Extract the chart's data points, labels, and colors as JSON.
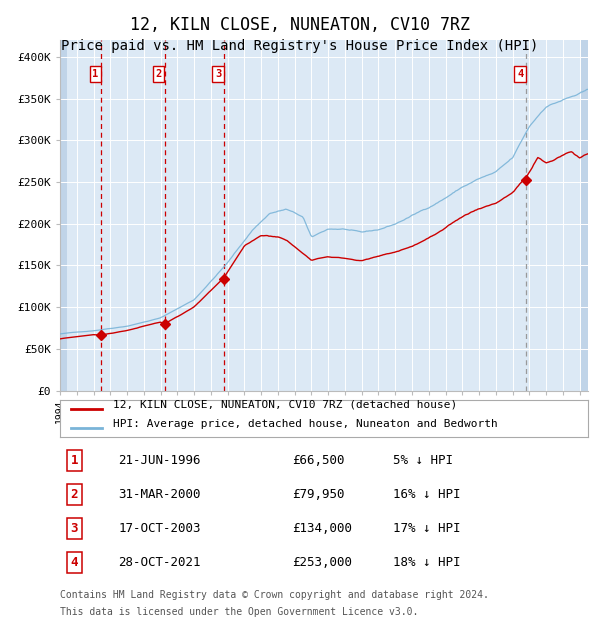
{
  "title": "12, KILN CLOSE, NUNEATON, CV10 7RZ",
  "subtitle": "Price paid vs. HM Land Registry's House Price Index (HPI)",
  "title_fontsize": 12,
  "subtitle_fontsize": 10,
  "background_color": "#dce9f5",
  "grid_color": "#ffffff",
  "hpi_color": "#7ab4d8",
  "price_color": "#cc0000",
  "marker_color": "#cc0000",
  "ylim": [
    0,
    420000
  ],
  "yticks": [
    0,
    50000,
    100000,
    150000,
    200000,
    250000,
    300000,
    350000,
    400000
  ],
  "ytick_labels": [
    "£0",
    "£50K",
    "£100K",
    "£150K",
    "£200K",
    "£250K",
    "£300K",
    "£350K",
    "£400K"
  ],
  "legend_entries": [
    "12, KILN CLOSE, NUNEATON, CV10 7RZ (detached house)",
    "HPI: Average price, detached house, Nuneaton and Bedworth"
  ],
  "transactions": [
    {
      "label": "1",
      "date": "21-JUN-1996",
      "price": 66500,
      "pct": "5%",
      "x_year": 1996.47
    },
    {
      "label": "2",
      "date": "31-MAR-2000",
      "price": 79950,
      "pct": "16%",
      "x_year": 2000.25
    },
    {
      "label": "3",
      "date": "17-OCT-2003",
      "price": 134000,
      "pct": "17%",
      "x_year": 2003.79
    },
    {
      "label": "4",
      "date": "28-OCT-2021",
      "price": 253000,
      "pct": "18%",
      "x_year": 2021.82
    }
  ],
  "footer_line1": "Contains HM Land Registry data © Crown copyright and database right 2024.",
  "footer_line2": "This data is licensed under the Open Government Licence v3.0.",
  "xmin": 1994.0,
  "xmax": 2025.5,
  "hpi_waypoints": [
    [
      1994.0,
      68000
    ],
    [
      1996.0,
      72000
    ],
    [
      1998.0,
      78000
    ],
    [
      2000.0,
      88000
    ],
    [
      2002.0,
      110000
    ],
    [
      2004.0,
      155000
    ],
    [
      2005.5,
      195000
    ],
    [
      2006.5,
      215000
    ],
    [
      2007.5,
      220000
    ],
    [
      2008.5,
      210000
    ],
    [
      2009.0,
      185000
    ],
    [
      2009.5,
      190000
    ],
    [
      2010.0,
      195000
    ],
    [
      2011.0,
      195000
    ],
    [
      2012.0,
      190000
    ],
    [
      2013.0,
      193000
    ],
    [
      2014.0,
      200000
    ],
    [
      2015.0,
      210000
    ],
    [
      2016.0,
      220000
    ],
    [
      2017.0,
      232000
    ],
    [
      2018.0,
      245000
    ],
    [
      2019.0,
      255000
    ],
    [
      2020.0,
      262000
    ],
    [
      2021.0,
      278000
    ],
    [
      2022.0,
      315000
    ],
    [
      2023.0,
      340000
    ],
    [
      2024.0,
      348000
    ],
    [
      2025.5,
      358000
    ]
  ],
  "price_waypoints": [
    [
      1994.0,
      62000
    ],
    [
      1996.0,
      67000
    ],
    [
      1996.47,
      66500
    ],
    [
      1998.0,
      72000
    ],
    [
      2000.0,
      82000
    ],
    [
      2000.25,
      79950
    ],
    [
      2002.0,
      100000
    ],
    [
      2003.5,
      128000
    ],
    [
      2003.79,
      134000
    ],
    [
      2005.0,
      170000
    ],
    [
      2006.0,
      183000
    ],
    [
      2007.0,
      182000
    ],
    [
      2007.5,
      178000
    ],
    [
      2008.5,
      162000
    ],
    [
      2009.0,
      155000
    ],
    [
      2010.0,
      160000
    ],
    [
      2011.0,
      158000
    ],
    [
      2012.0,
      155000
    ],
    [
      2013.0,
      160000
    ],
    [
      2014.0,
      165000
    ],
    [
      2015.0,
      172000
    ],
    [
      2016.0,
      182000
    ],
    [
      2017.0,
      192000
    ],
    [
      2018.0,
      205000
    ],
    [
      2019.0,
      215000
    ],
    [
      2020.0,
      222000
    ],
    [
      2021.0,
      235000
    ],
    [
      2021.82,
      253000
    ],
    [
      2022.0,
      258000
    ],
    [
      2022.5,
      275000
    ],
    [
      2023.0,
      268000
    ],
    [
      2023.5,
      272000
    ],
    [
      2024.0,
      278000
    ],
    [
      2024.5,
      282000
    ],
    [
      2025.0,
      275000
    ],
    [
      2025.5,
      280000
    ]
  ]
}
